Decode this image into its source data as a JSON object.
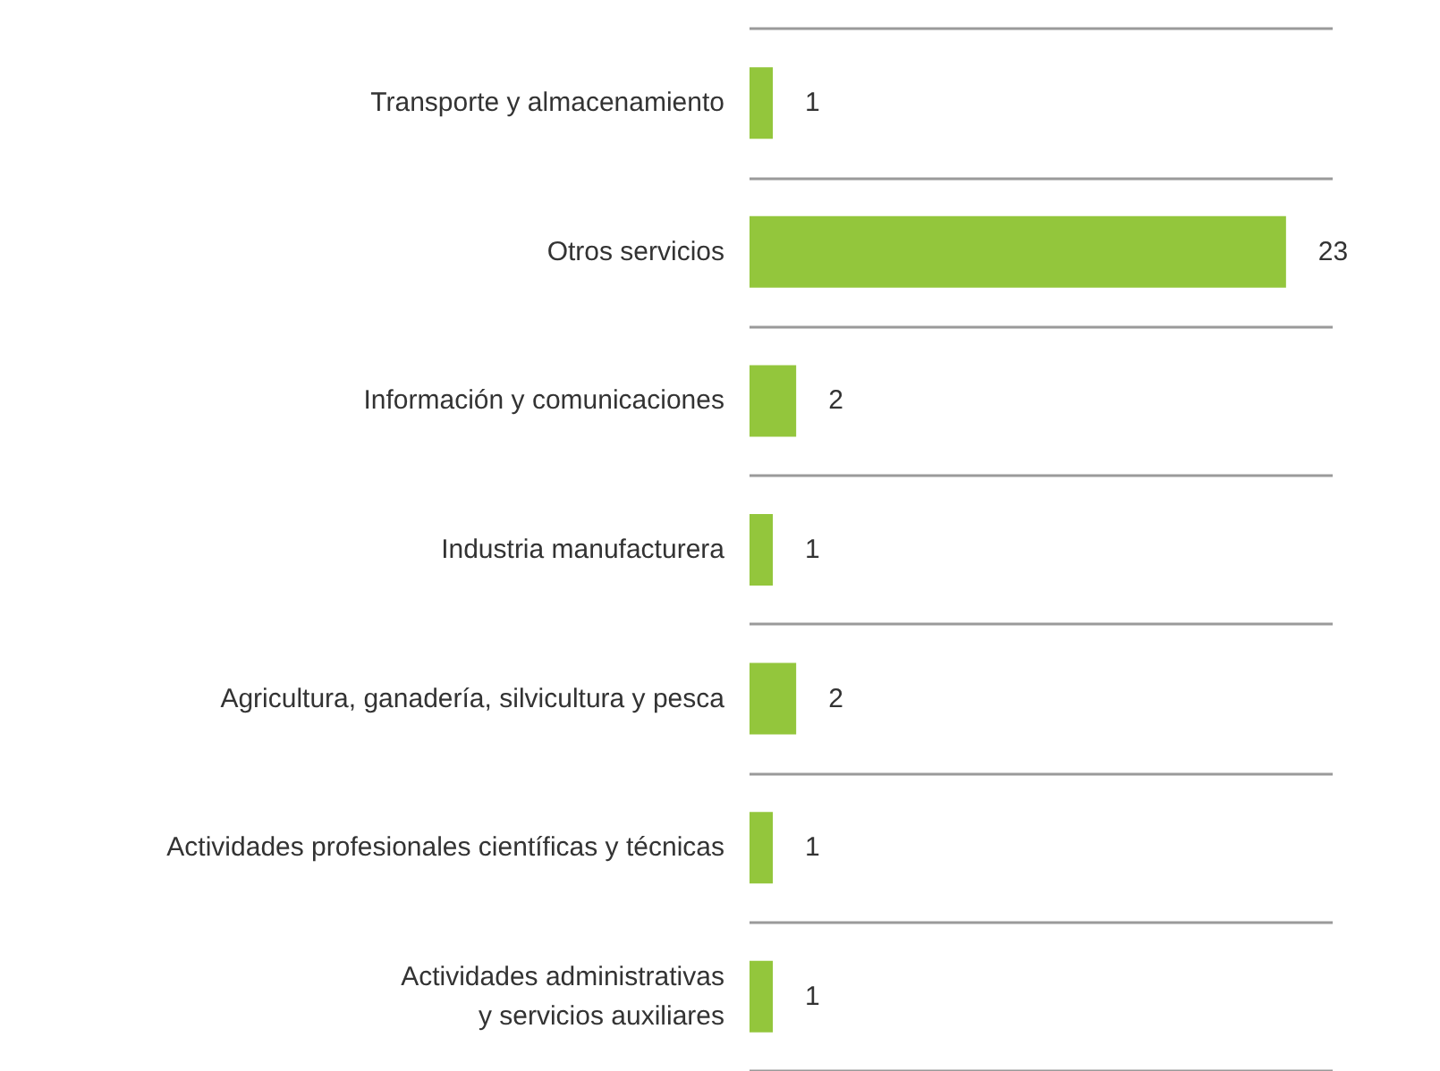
{
  "chart_data": {
    "type": "bar",
    "orientation": "horizontal",
    "categories": [
      "Transporte y almacenamiento",
      "Otros servicios",
      "Información y comunicaciones",
      "Industria manufacturera",
      "Agricultura, ganadería, silvicultura y pesca",
      "Actividades profesionales científicas y técnicas",
      "Actividades administrativas\ny servicios auxiliares"
    ],
    "values": [
      1,
      23,
      2,
      1,
      2,
      1,
      1
    ],
    "color": "#93c63c",
    "data_labels": true,
    "grid": "y"
  }
}
